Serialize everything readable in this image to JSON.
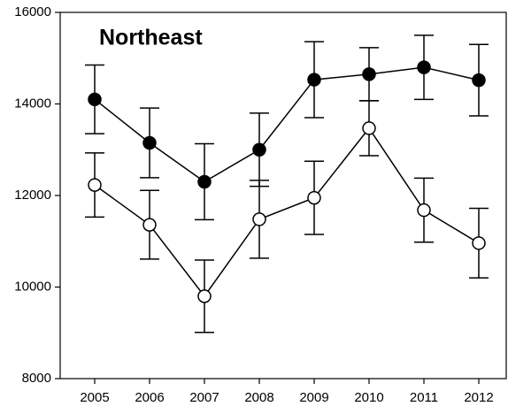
{
  "chart_data": {
    "type": "line",
    "annotation": "Northeast",
    "categories": [
      "2005",
      "2006",
      "2007",
      "2008",
      "2009",
      "2010",
      "2011",
      "2012"
    ],
    "series": [
      {
        "color": "#000000",
        "marker_fill": "#000000",
        "values": [
          14100,
          13150,
          12300,
          13000,
          14530,
          14650,
          14800,
          14520
        ],
        "errors": [
          750,
          760,
          830,
          800,
          830,
          580,
          700,
          780
        ]
      },
      {
        "color": "#000000",
        "marker_fill": "#ffffff",
        "values": [
          12230,
          11360,
          9800,
          11480,
          11950,
          13470,
          11680,
          10960
        ],
        "errors": [
          700,
          750,
          790,
          850,
          800,
          600,
          700,
          760
        ]
      }
    ],
    "ylim": [
      8000,
      16000
    ],
    "yticks": [
      8000,
      10000,
      12000,
      14000,
      16000
    ]
  }
}
